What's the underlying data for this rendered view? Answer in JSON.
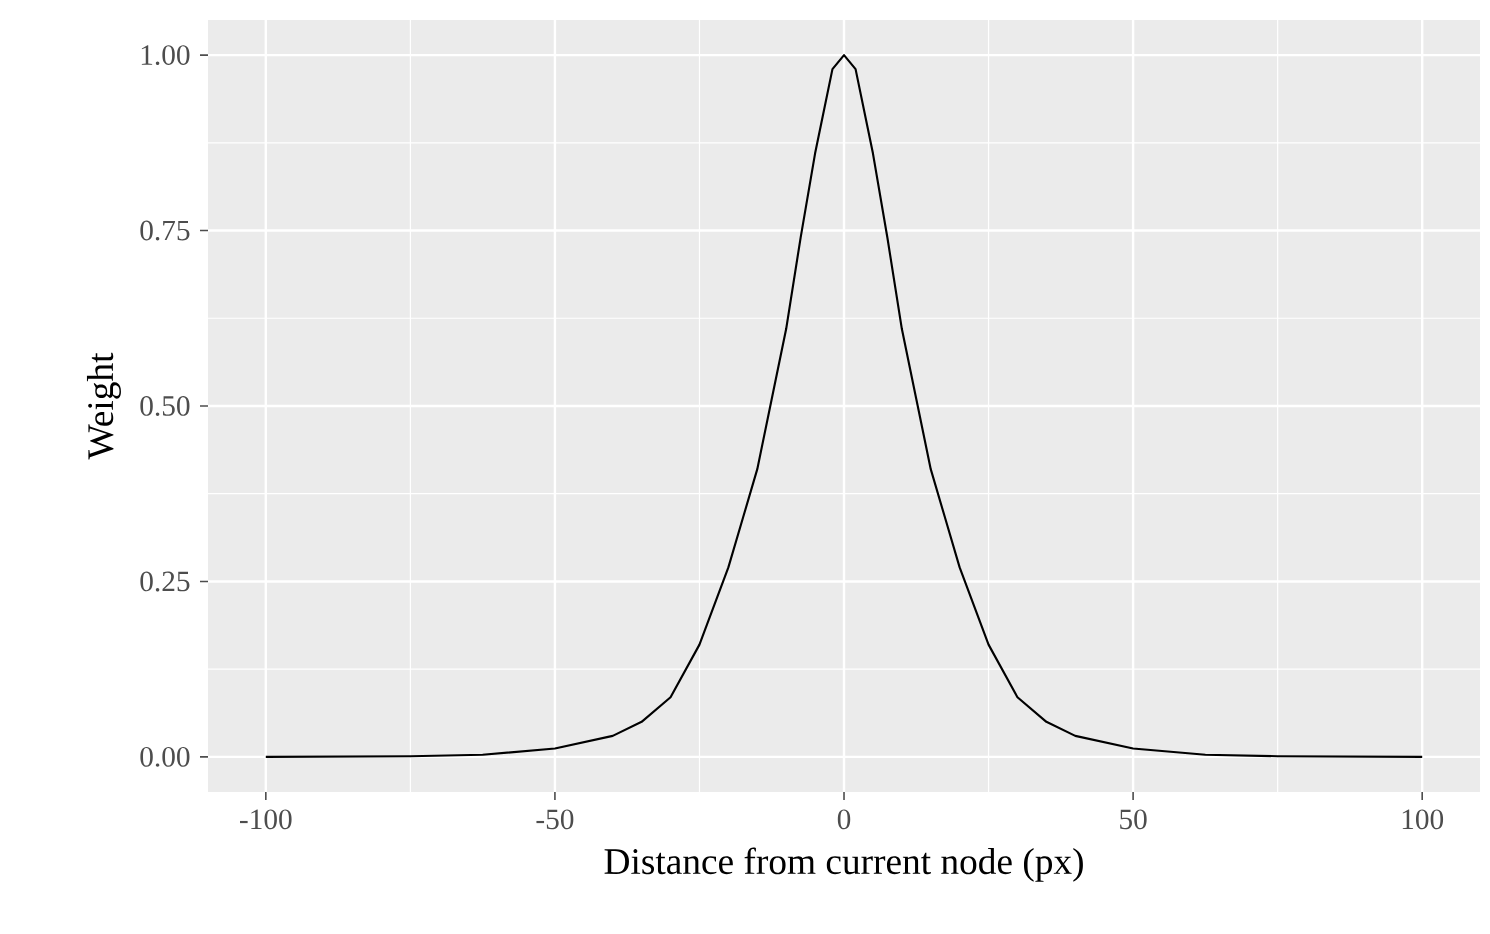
{
  "chart_data": {
    "type": "line",
    "xlabel": "Distance from current node (px)",
    "ylabel": "Weight",
    "x": [
      -100,
      -75,
      -62.5,
      -50,
      -40,
      -35,
      -30,
      -25,
      -20,
      -17.5,
      -15,
      -12.5,
      -10,
      -7.5,
      -5,
      -4,
      -2,
      0,
      2,
      4,
      5,
      7.5,
      10,
      12.5,
      15,
      17.5,
      20,
      25,
      30,
      35,
      40,
      50,
      62.5,
      75,
      100
    ],
    "series": [
      {
        "color": "#000000",
        "values": [
          0,
          0.001,
          0.003,
          0.012,
          0.03,
          0.05,
          0.085,
          0.16,
          0.27,
          0.34,
          0.41,
          0.51,
          0.61,
          0.74,
          0.86,
          0.9,
          0.98,
          1,
          0.98,
          0.9,
          0.86,
          0.74,
          0.61,
          0.51,
          0.41,
          0.34,
          0.27,
          0.16,
          0.085,
          0.05,
          0.03,
          0.012,
          0.003,
          0.001,
          0
        ]
      }
    ],
    "xlim": [
      -110,
      110
    ],
    "ylim": [
      -0.05,
      1.05
    ],
    "xticks": [
      -100,
      -50,
      0,
      50,
      100
    ],
    "yticks": [
      {
        "value": 0,
        "label": "0.00"
      },
      {
        "value": 0.25,
        "label": "0.25"
      },
      {
        "value": 0.5,
        "label": "0.50"
      },
      {
        "value": 0.75,
        "label": "0.75"
      },
      {
        "value": 1,
        "label": "1.00"
      }
    ],
    "grid": true,
    "line_style": "solid",
    "marker": "none"
  }
}
